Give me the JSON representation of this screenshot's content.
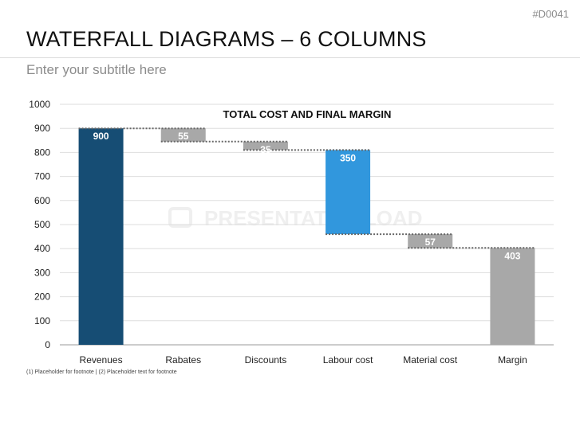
{
  "slide_id": "#D0041",
  "title": "WATERFALL DIAGRAMS – 6 COLUMNS",
  "subtitle": "Enter your subtitle here",
  "footnote": "(1) Placeholder for footnote | (2) Placeholder text for footnote",
  "watermark": "PRESENTATIONLOAD",
  "chart_data": {
    "type": "bar",
    "subtype": "waterfall",
    "title": "TOTAL COST AND FINAL MARGIN",
    "categories": [
      "Revenues",
      "Rabates",
      "Discounts",
      "Labour cost",
      "Material cost",
      "Margin"
    ],
    "values": [
      900,
      55,
      35,
      350,
      57,
      403
    ],
    "labels": [
      "900",
      "55",
      "35",
      "350",
      "57",
      "403"
    ],
    "ranges": [
      [
        0,
        900
      ],
      [
        845,
        900
      ],
      [
        810,
        845
      ],
      [
        460,
        810
      ],
      [
        403,
        460
      ],
      [
        0,
        403
      ]
    ],
    "yticks": [
      "0",
      "100",
      "200",
      "300",
      "400",
      "500",
      "600",
      "700",
      "800",
      "900",
      "1000"
    ],
    "ylim": [
      0,
      1000
    ],
    "grid": true,
    "colors": [
      "#164d74",
      "#a8a8a8",
      "#a8a8a8",
      "#3197dd",
      "#a8a8a8",
      "#a8a8a8"
    ]
  }
}
